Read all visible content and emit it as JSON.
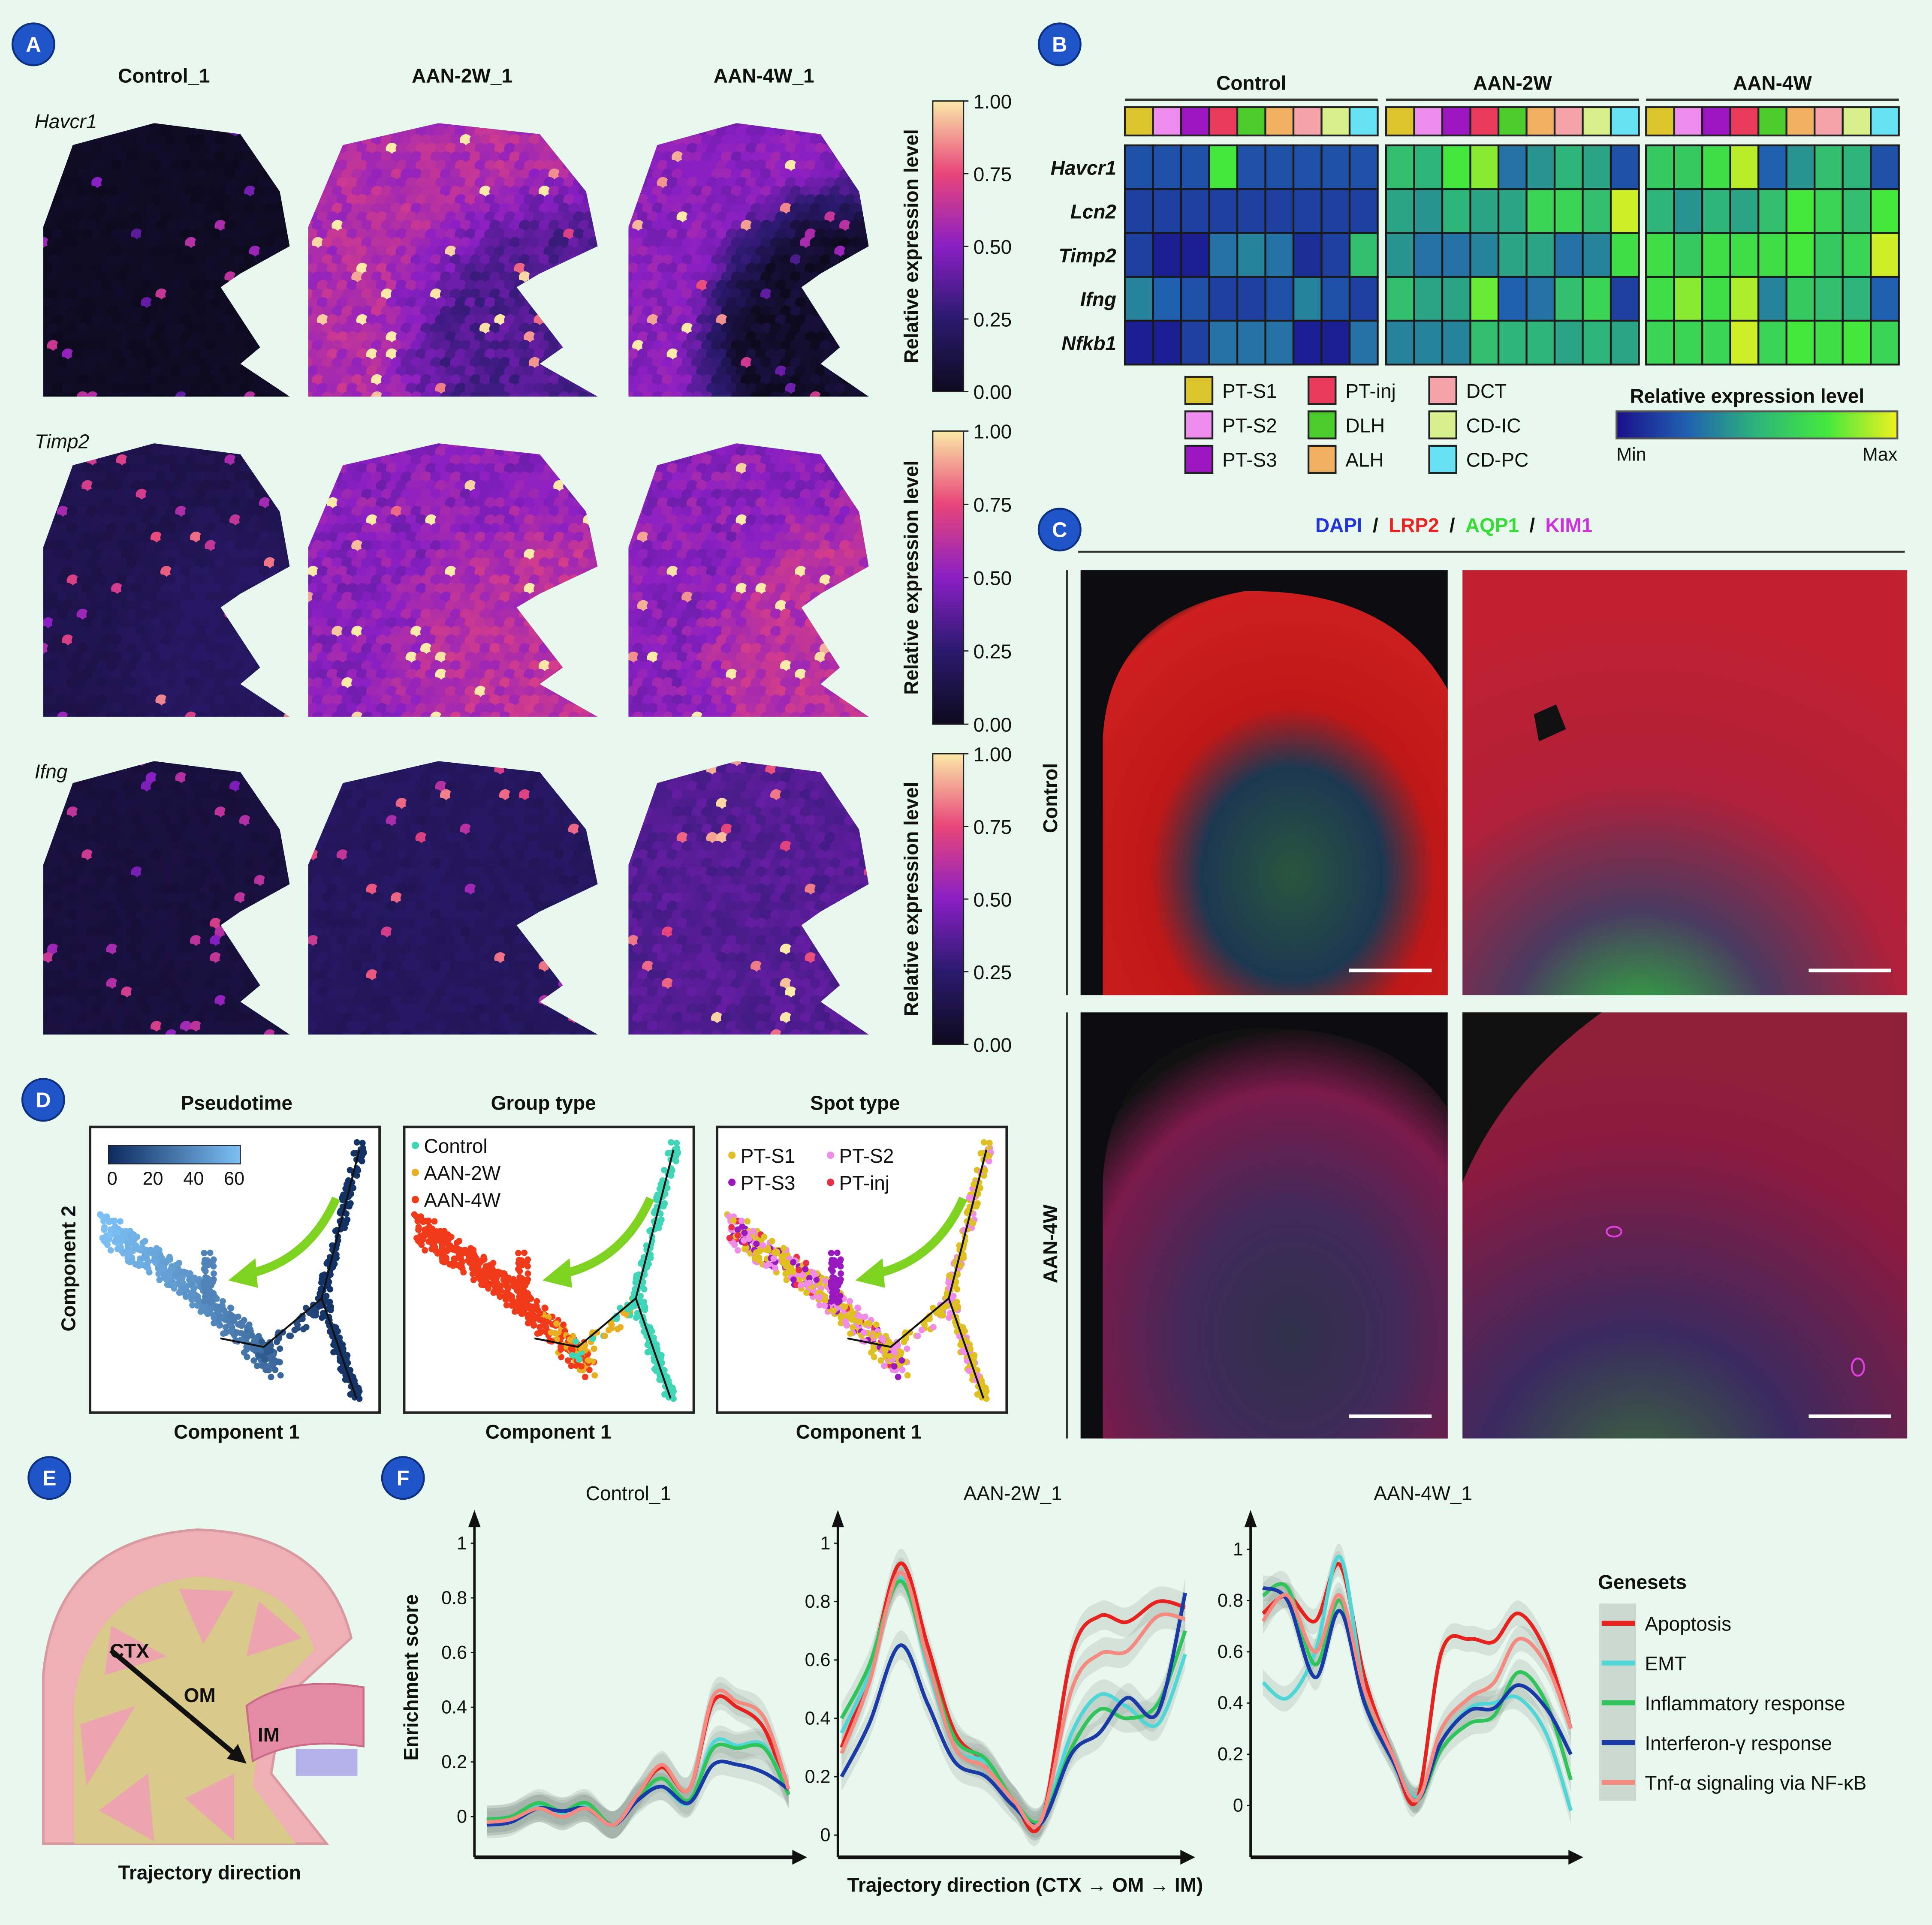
{
  "badges": {
    "a": "A",
    "b": "B",
    "c": "C",
    "d": "D",
    "e": "E",
    "f": "F"
  },
  "panel_a": {
    "columns": [
      "Control_1",
      "AAN-2W_1",
      "AAN-4W_1"
    ],
    "genes": [
      "Havcr1",
      "Timp2",
      "Ifng"
    ],
    "colorbar": {
      "label": "Relative expression level",
      "ticks": [
        "1.00",
        "0.75",
        "0.50",
        "0.25",
        "0.00"
      ]
    },
    "levels": [
      [
        {
          "cortex": 0.02,
          "medulla": 0.02
        },
        {
          "cortex": 0.6,
          "medulla": 0.35
        },
        {
          "cortex": 0.5,
          "medulla": 0.04
        }
      ],
      [
        {
          "cortex": 0.15,
          "medulla": 0.2
        },
        {
          "cortex": 0.5,
          "medulla": 0.62
        },
        {
          "cortex": 0.5,
          "medulla": 0.62
        }
      ],
      [
        {
          "cortex": 0.1,
          "medulla": 0.1
        },
        {
          "cortex": 0.2,
          "medulla": 0.2
        },
        {
          "cortex": 0.36,
          "medulla": 0.36
        }
      ]
    ]
  },
  "panel_c": {
    "stain": [
      {
        "label": "DAPI",
        "color": "#2233dd"
      },
      {
        "label": "LRP2",
        "color": "#ee2222"
      },
      {
        "label": "AQP1",
        "color": "#33dd33"
      },
      {
        "label": "KIM1",
        "color": "#cc33dd"
      }
    ],
    "separator": "/",
    "rows": [
      "Control",
      "AAN-4W"
    ]
  },
  "panel_e": {
    "labels": {
      "ctx": "CTX",
      "om": "OM",
      "im": "IM"
    },
    "caption": "Trajectory direction"
  },
  "chart_data": [
    {
      "type": "heatmap",
      "panel": "B",
      "groups": [
        "Control",
        "AAN-2W",
        "AAN-4W"
      ],
      "cell_types": [
        "PT-S1",
        "PT-S2",
        "PT-S3",
        "PT-inj",
        "DLH",
        "ALH",
        "DCT",
        "CD-IC",
        "CD-PC"
      ],
      "cell_type_colors": [
        "#dcc42c",
        "#ee8cee",
        "#9b16c0",
        "#e83a5a",
        "#4ccc2c",
        "#f0b060",
        "#f4a4a8",
        "#d8f08c",
        "#66e2f4"
      ],
      "genes": [
        "Havcr1",
        "Lcn2",
        "Timp2",
        "Ifng",
        "Nfkb1"
      ],
      "values": {
        "Control": [
          [
            0.2,
            0.2,
            0.2,
            0.75,
            0.2,
            0.2,
            0.2,
            0.2,
            0.2
          ],
          [
            0.15,
            0.15,
            0.15,
            0.15,
            0.15,
            0.15,
            0.15,
            0.15,
            0.15
          ],
          [
            0.15,
            0.05,
            0.05,
            0.3,
            0.35,
            0.3,
            0.1,
            0.15,
            0.55
          ],
          [
            0.35,
            0.25,
            0.2,
            0.15,
            0.15,
            0.2,
            0.35,
            0.2,
            0.15
          ],
          [
            0.05,
            0.05,
            0.15,
            0.3,
            0.3,
            0.3,
            0.05,
            0.05,
            0.3
          ]
        ],
        "AAN-2W": [
          [
            0.55,
            0.5,
            0.75,
            0.85,
            0.3,
            0.4,
            0.5,
            0.45,
            0.2
          ],
          [
            0.45,
            0.4,
            0.5,
            0.45,
            0.45,
            0.65,
            0.65,
            0.55,
            0.95
          ],
          [
            0.4,
            0.3,
            0.3,
            0.35,
            0.45,
            0.45,
            0.3,
            0.35,
            0.7
          ],
          [
            0.55,
            0.45,
            0.45,
            0.8,
            0.25,
            0.3,
            0.55,
            0.65,
            0.15
          ],
          [
            0.35,
            0.35,
            0.35,
            0.55,
            0.5,
            0.5,
            0.45,
            0.5,
            0.45
          ]
        ],
        "AAN-4W": [
          [
            0.6,
            0.6,
            0.7,
            0.92,
            0.25,
            0.4,
            0.55,
            0.5,
            0.2
          ],
          [
            0.5,
            0.4,
            0.5,
            0.45,
            0.55,
            0.75,
            0.65,
            0.55,
            0.75
          ],
          [
            0.7,
            0.6,
            0.7,
            0.7,
            0.7,
            0.75,
            0.6,
            0.65,
            0.95
          ],
          [
            0.7,
            0.85,
            0.7,
            0.9,
            0.35,
            0.6,
            0.55,
            0.5,
            0.25
          ],
          [
            0.65,
            0.65,
            0.65,
            0.95,
            0.65,
            0.75,
            0.7,
            0.75,
            0.65
          ]
        ]
      },
      "colorbar": {
        "label": "Relative expression level",
        "min": "Min",
        "max": "Max"
      }
    },
    {
      "type": "scatter",
      "panel": "D",
      "xlabel": "Component 1",
      "ylabel": "Component 2",
      "subplots": [
        {
          "title": "Pseudotime",
          "colorbar_ticks": [
            "0",
            "20",
            "40",
            "60"
          ],
          "range": [
            0,
            60
          ]
        },
        {
          "title": "Group type",
          "legend": [
            {
              "label": "Control",
              "color": "#3fd6b8"
            },
            {
              "label": "AAN-2W",
              "color": "#e8b020"
            },
            {
              "label": "AAN-4W",
              "color": "#f03a1a"
            }
          ]
        },
        {
          "title": "Spot type",
          "legend": [
            {
              "label": "PT-S1",
              "color": "#e0c020"
            },
            {
              "label": "PT-S2",
              "color": "#f08ce8"
            },
            {
              "label": "PT-S3",
              "color": "#9a18c0"
            },
            {
              "label": "PT-inj",
              "color": "#e8304a"
            }
          ]
        }
      ]
    },
    {
      "type": "line",
      "panel": "F",
      "ylabel": "Enrichment score",
      "xlabel": "Trajectory direction (CTX → OM → IM)",
      "legend_title": "Genesets",
      "x": [
        0,
        0.08,
        0.17,
        0.25,
        0.33,
        0.42,
        0.5,
        0.58,
        0.67,
        0.75,
        0.83,
        0.92,
        1
      ],
      "series_meta": [
        {
          "name": "Apoptosis",
          "color": "#e8231f"
        },
        {
          "name": "EMT",
          "color": "#4fd6d6"
        },
        {
          "name": "Inflammatory response",
          "color": "#2fc55a"
        },
        {
          "name": "Interferon-γ response",
          "color": "#1a3aa8"
        },
        {
          "name": "Tnf-α signaling via NF-κB",
          "color": "#f58a80"
        }
      ],
      "subplots": [
        {
          "title": "Control_1",
          "yticks": [
            "0",
            "0.2",
            "0.4",
            "0.6",
            "0.8",
            "1"
          ],
          "ylim": [
            -0.15,
            1.1
          ],
          "series": [
            [
              -0.02,
              -0.01,
              0.03,
              0.0,
              0.03,
              -0.03,
              0.08,
              0.18,
              0.1,
              0.42,
              0.4,
              0.32,
              0.08
            ],
            [
              -0.01,
              0.0,
              0.04,
              0.01,
              0.04,
              -0.03,
              0.07,
              0.11,
              0.05,
              0.27,
              0.26,
              0.26,
              0.08
            ],
            [
              -0.01,
              0.0,
              0.05,
              0.02,
              0.05,
              -0.03,
              0.07,
              0.14,
              0.06,
              0.25,
              0.25,
              0.25,
              0.08
            ],
            [
              -0.03,
              -0.02,
              0.03,
              0.02,
              0.03,
              -0.03,
              0.06,
              0.11,
              0.05,
              0.19,
              0.19,
              0.16,
              0.1
            ],
            [
              -0.02,
              -0.01,
              0.03,
              0.0,
              0.03,
              -0.03,
              0.08,
              0.19,
              0.1,
              0.44,
              0.42,
              0.36,
              0.1
            ]
          ]
        },
        {
          "title": "AAN-2W_1",
          "yticks": [
            "0",
            "0.2",
            "0.4",
            "0.6",
            "0.8",
            "1"
          ],
          "ylim": [
            -0.05,
            1.1
          ],
          "series": [
            [
              0.3,
              0.55,
              0.93,
              0.65,
              0.35,
              0.25,
              0.12,
              0.04,
              0.62,
              0.75,
              0.73,
              0.8,
              0.78
            ],
            [
              0.35,
              0.55,
              0.88,
              0.58,
              0.3,
              0.25,
              0.12,
              0.05,
              0.35,
              0.48,
              0.44,
              0.38,
              0.62
            ],
            [
              0.4,
              0.58,
              0.87,
              0.6,
              0.33,
              0.26,
              0.12,
              0.05,
              0.3,
              0.43,
              0.4,
              0.45,
              0.7
            ],
            [
              0.2,
              0.38,
              0.65,
              0.45,
              0.25,
              0.2,
              0.1,
              0.04,
              0.28,
              0.35,
              0.47,
              0.42,
              0.83
            ],
            [
              0.28,
              0.52,
              0.9,
              0.6,
              0.3,
              0.23,
              0.12,
              0.05,
              0.5,
              0.62,
              0.63,
              0.75,
              0.74
            ]
          ]
        },
        {
          "title": "AAN-4W_1",
          "yticks": [
            "0",
            "0.2",
            "0.4",
            "0.6",
            "0.8",
            "1"
          ],
          "ylim": [
            -0.15,
            1.1
          ],
          "series": [
            [
              0.75,
              0.82,
              0.72,
              0.94,
              0.5,
              0.2,
              0.02,
              0.6,
              0.65,
              0.64,
              0.75,
              0.6,
              0.3
            ],
            [
              0.48,
              0.42,
              0.6,
              0.97,
              0.45,
              0.2,
              0.03,
              0.25,
              0.38,
              0.4,
              0.42,
              0.28,
              -0.02
            ],
            [
              0.82,
              0.85,
              0.55,
              0.8,
              0.42,
              0.18,
              0.02,
              0.22,
              0.32,
              0.35,
              0.52,
              0.4,
              0.1
            ],
            [
              0.85,
              0.8,
              0.5,
              0.76,
              0.4,
              0.18,
              0.02,
              0.25,
              0.37,
              0.38,
              0.47,
              0.38,
              0.2
            ],
            [
              0.72,
              0.82,
              0.6,
              0.82,
              0.45,
              0.2,
              0.02,
              0.3,
              0.42,
              0.48,
              0.65,
              0.55,
              0.3
            ]
          ]
        }
      ]
    }
  ]
}
